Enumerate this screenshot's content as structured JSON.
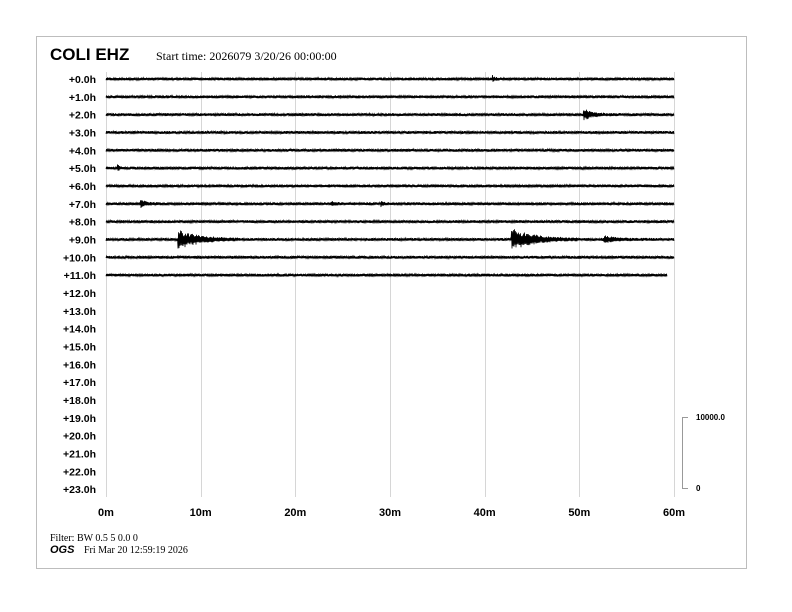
{
  "header": {
    "station": "COLI EHZ",
    "start_time": "Start time: 2026079  3/20/26 00:00:00"
  },
  "footer": {
    "filter": "Filter: BW 0.5 5 0.0 0",
    "org": "OGS",
    "timestamp": "Fri Mar 20 12:59:19 2026"
  },
  "chart_data": {
    "type": "line",
    "subtype": "helicorder",
    "title": "COLI EHZ",
    "grid": true,
    "xlim": [
      0,
      60
    ],
    "x_ticks": [
      "0m",
      "10m",
      "20m",
      "30m",
      "40m",
      "50m",
      "60m"
    ],
    "x_tick_values": [
      0,
      10,
      20,
      30,
      40,
      50,
      60
    ],
    "row_labels": [
      "+0.0h",
      "+1.0h",
      "+2.0h",
      "+3.0h",
      "+4.0h",
      "+5.0h",
      "+6.0h",
      "+7.0h",
      "+8.0h",
      "+9.0h",
      "+10.0h",
      "+11.0h",
      "+12.0h",
      "+13.0h",
      "+14.0h",
      "+15.0h",
      "+16.0h",
      "+17.0h",
      "+18.0h",
      "+19.0h",
      "+20.0h",
      "+21.0h",
      "+22.0h",
      "+23.0h"
    ],
    "rows_with_data": 12,
    "last_row_end_minute": 59.3,
    "amplitude_scale": {
      "top_label": "10000.0",
      "bottom_label": "0",
      "top": 10000,
      "bottom": 0
    },
    "background_noise_counts": 150,
    "events": [
      {
        "hour": 0,
        "start_min": 40.8,
        "duration_min": 0.6,
        "peak_counts": 500
      },
      {
        "hour": 2,
        "start_min": 50.4,
        "duration_min": 2.0,
        "peak_counts": 700
      },
      {
        "hour": 5,
        "start_min": 1.2,
        "duration_min": 0.3,
        "peak_counts": 500
      },
      {
        "hour": 7,
        "start_min": 3.6,
        "duration_min": 1.0,
        "peak_counts": 600
      },
      {
        "hour": 7,
        "start_min": 23.8,
        "duration_min": 0.8,
        "peak_counts": 300
      },
      {
        "hour": 7,
        "start_min": 29.0,
        "duration_min": 0.6,
        "peak_counts": 400
      },
      {
        "hour": 9,
        "start_min": 7.6,
        "duration_min": 4.5,
        "peak_counts": 1200
      },
      {
        "hour": 9,
        "start_min": 42.8,
        "duration_min": 5.0,
        "peak_counts": 1400
      },
      {
        "hour": 9,
        "start_min": 52.6,
        "duration_min": 3.0,
        "peak_counts": 400
      }
    ]
  }
}
